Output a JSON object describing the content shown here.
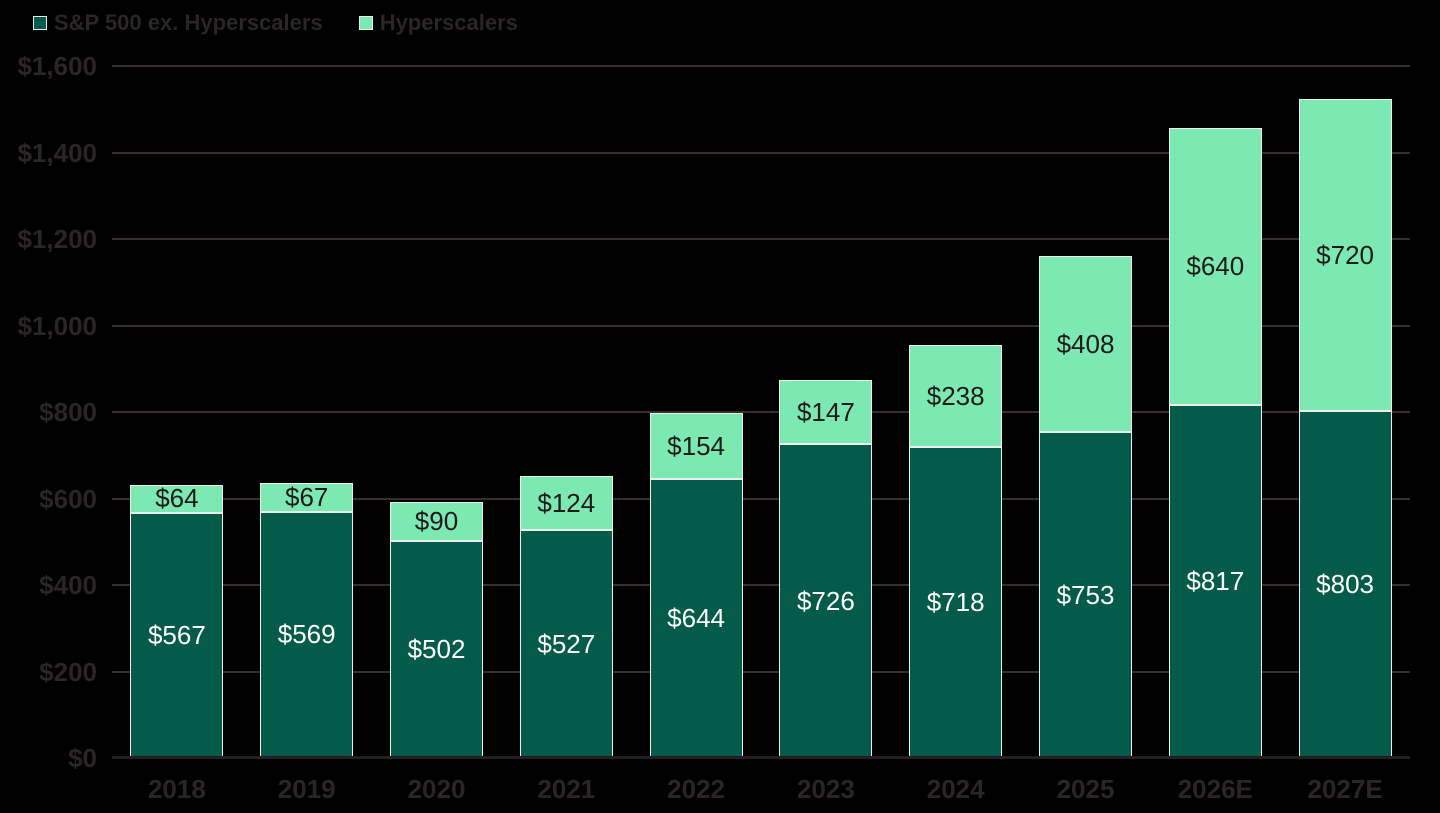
{
  "colors": {
    "background": "#000000",
    "axis_text": "#2a2526",
    "gridline": "#362e31",
    "baseline": "#241f20",
    "bar_border": "#edefed"
  },
  "legend": {
    "position": "top-left"
  },
  "chart_data": {
    "type": "bar",
    "stacked": true,
    "title": "",
    "xlabel": "",
    "ylabel": "",
    "value_prefix": "$",
    "categories": [
      "2018",
      "2019",
      "2020",
      "2021",
      "2022",
      "2023",
      "2024",
      "2025",
      "2026E",
      "2027E"
    ],
    "series": [
      {
        "name": "S&P 500 ex. Hyperscalers",
        "color": "#055b49",
        "label_color": "#ffffff",
        "values": [
          567,
          569,
          502,
          527,
          644,
          726,
          718,
          753,
          817,
          803
        ]
      },
      {
        "name": "Hyperscalers",
        "color": "#7ce9b2",
        "label_color": "#1d1a1b",
        "values": [
          64,
          67,
          90,
          124,
          154,
          147,
          238,
          408,
          640,
          720
        ]
      }
    ],
    "totals": [
      631,
      636,
      592,
      651,
      798,
      873,
      956,
      1161,
      1457,
      1523
    ],
    "ylim": [
      0,
      1600
    ],
    "yticks": {
      "values": [
        0,
        200,
        400,
        600,
        800,
        1000,
        1200,
        1400,
        1600
      ],
      "labels": [
        "$0",
        "$200",
        "$400",
        "$600",
        "$800",
        "$1,000",
        "$1,200",
        "$1,400",
        "$1,600"
      ]
    },
    "grid": true,
    "legend_position": "top-left"
  }
}
